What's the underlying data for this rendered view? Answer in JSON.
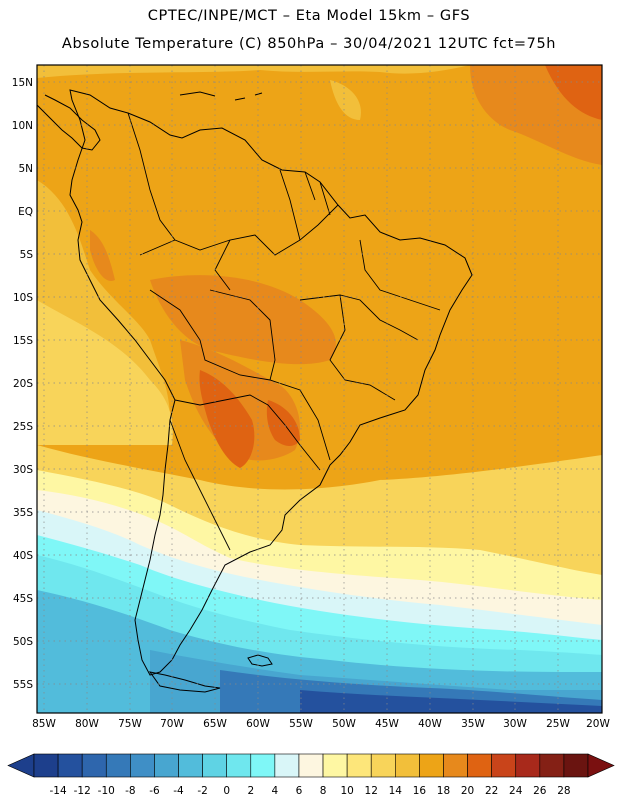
{
  "header": {
    "line1": "CPTEC/INPE/MCT –  Eta Model 15km – GFS",
    "line2": "Absolute Temperature (C) 850hPa – 30/04/2021 12UTC fct=75h"
  },
  "map": {
    "region": "South America",
    "lat_labels": [
      "15N",
      "10N",
      "5N",
      "EQ",
      "5S",
      "10S",
      "15S",
      "20S",
      "25S",
      "30S",
      "35S",
      "40S",
      "45S",
      "50S",
      "55S"
    ],
    "lon_labels": [
      "85W",
      "80W",
      "75W",
      "70W",
      "65W",
      "60W",
      "55W",
      "50W",
      "45W",
      "40W",
      "35W",
      "30W",
      "25W",
      "20W"
    ]
  },
  "colorbar": {
    "labels": [
      "-14",
      "-12",
      "-10",
      "-8",
      "-6",
      "-4",
      "-2",
      "0",
      "2",
      "4",
      "6",
      "8",
      "10",
      "12",
      "14",
      "16",
      "18",
      "20",
      "22",
      "24",
      "26",
      "28"
    ],
    "colors": [
      "#1d3f8c",
      "#24519e",
      "#2e66ad",
      "#3579b8",
      "#3f8fc6",
      "#48a6d0",
      "#52bcdb",
      "#5fd3e4",
      "#6fe7ee",
      "#7ff7f7",
      "#d9f6f8",
      "#fdf6e0",
      "#fef7a3",
      "#fde67a",
      "#f8d45a",
      "#f2bf3a",
      "#eda417",
      "#e7891c",
      "#df6312",
      "#c9441a",
      "#a8291b",
      "#842015",
      "#6a1410"
    ]
  },
  "colors": {
    "hot": "#e7891c",
    "warm": "#eda417",
    "cold": "#24519e",
    "land_border": "#000000"
  }
}
